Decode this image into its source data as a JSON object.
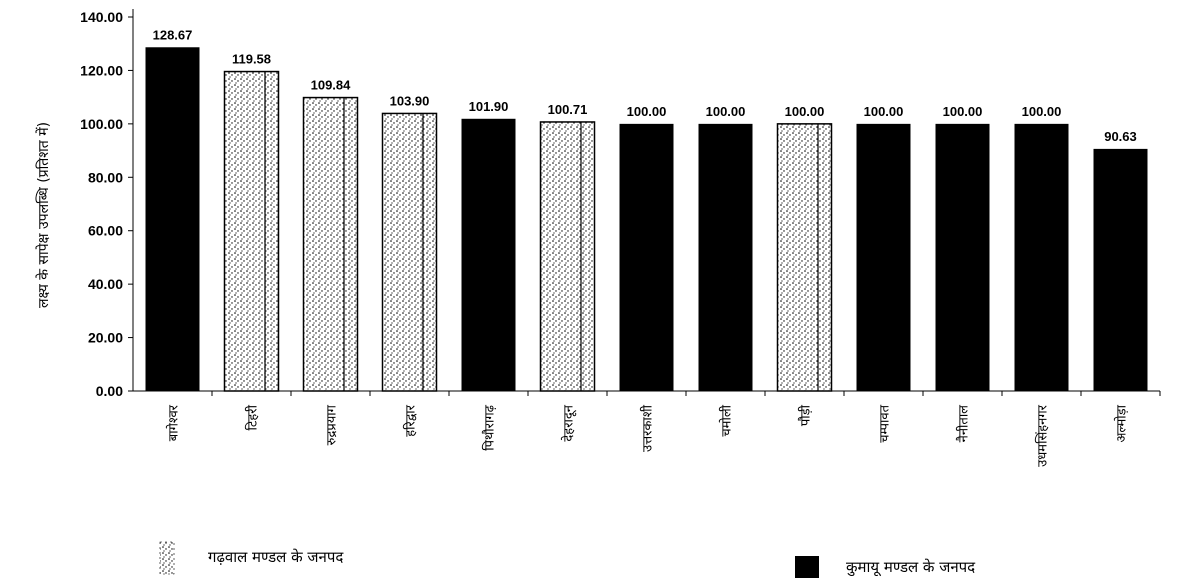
{
  "chart_data": {
    "type": "bar",
    "title": "",
    "xlabel": "",
    "ylabel": "लक्ष्य के सापेक्ष उपलब्धि (प्रतिशत में)",
    "ylim": [
      0,
      140
    ],
    "y_ticks": [
      "0.00",
      "20.00",
      "40.00",
      "60.00",
      "80.00",
      "100.00",
      "120.00",
      "140.00"
    ],
    "grid": false,
    "categories": [
      "बागेश्वर",
      "टिहरी",
      "रुद्रप्रयाग",
      "हरिद्वार",
      "पिथौरागढ़",
      "देहरादून",
      "उत्तरकाशी",
      "चमोली",
      "पौड़ी",
      "चम्पावत",
      "नैनीताल",
      "उधमसिंहनगर",
      "अल्मोड़ा"
    ],
    "values": [
      128.67,
      119.58,
      109.84,
      103.9,
      101.9,
      100.71,
      100.0,
      100.0,
      100.0,
      100.0,
      100.0,
      100.0,
      90.63
    ],
    "value_labels": [
      "128.67",
      "119.58",
      "109.84",
      "103.90",
      "101.90",
      "100.71",
      "100.00",
      "100.00",
      "100.00",
      "100.00",
      "100.00",
      "100.00",
      "90.63"
    ],
    "groups": [
      "kumaon",
      "garhwal",
      "garhwal",
      "garhwal",
      "kumaon",
      "garhwal",
      "kumaon",
      "kumaon",
      "garhwal",
      "kumaon",
      "kumaon",
      "kumaon",
      "kumaon"
    ],
    "legend": {
      "garhwal": {
        "label": "गढ़वाल मण्डल के जनपद",
        "style": "stippled"
      },
      "kumaon": {
        "label": "कुमायू मण्डल के जनपद",
        "style": "solid"
      }
    },
    "colors": {
      "solid_fill": "#000000",
      "stipple_dot": "#000000",
      "background": "#ffffff"
    }
  }
}
